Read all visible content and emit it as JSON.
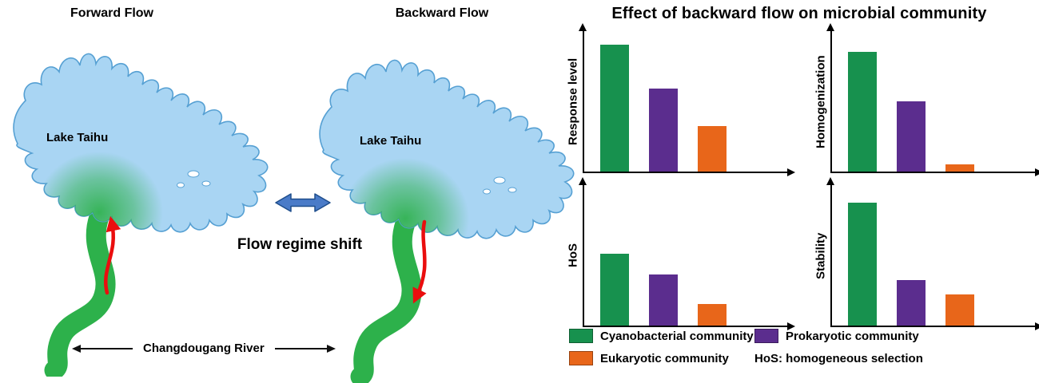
{
  "maps": {
    "forward": {
      "title": "Forward Flow",
      "lake_label": "Lake Taihu",
      "arrow_direction": "up"
    },
    "backward": {
      "title": "Backward Flow",
      "lake_label": "Lake Taihu",
      "arrow_direction": "down"
    },
    "shift_label": "Flow regime shift",
    "river_label": "Changdougang River"
  },
  "charts": {
    "title": "Effect of backward flow on microbial community"
  },
  "chart_data": [
    {
      "type": "bar",
      "ylabel": "Response level",
      "categories": [
        "Cyanobacterial community",
        "Prokaryotic community",
        "Eukaryotic community"
      ],
      "values": [
        0.9,
        0.59,
        0.32
      ],
      "ylim": [
        0,
        1
      ]
    },
    {
      "type": "bar",
      "ylabel": "Homogenization",
      "categories": [
        "Cyanobacterial community",
        "Prokaryotic community",
        "Eukaryotic community"
      ],
      "values": [
        0.85,
        0.5,
        0.05
      ],
      "ylim": [
        0,
        1
      ]
    },
    {
      "type": "bar",
      "ylabel": "HoS",
      "categories": [
        "Cyanobacterial community",
        "Prokaryotic community",
        "Eukaryotic community"
      ],
      "values": [
        0.51,
        0.36,
        0.15
      ],
      "ylim": [
        0,
        1
      ]
    },
    {
      "type": "bar",
      "ylabel": "Stability",
      "categories": [
        "Cyanobacterial community",
        "Prokaryotic community",
        "Eukaryotic community"
      ],
      "values": [
        0.87,
        0.32,
        0.22
      ],
      "ylim": [
        0,
        1
      ]
    }
  ],
  "legend": {
    "items": [
      {
        "label": "Cyanobacterial community",
        "color": "#17914e"
      },
      {
        "label": "Prokaryotic community",
        "color": "#5b2d8e"
      },
      {
        "label": "Eukaryotic community",
        "color": "#e8661a"
      }
    ],
    "note": "HoS: homogeneous selection"
  },
  "colors": {
    "lake_fill": "#a9d5f3",
    "lake_stroke": "#56a0d3",
    "river_green": "#2db14b",
    "flow_arrow_red": "#ea0e0e",
    "shift_arrow_fill": "#4a7bc8",
    "shift_arrow_stroke": "#1f4e8c"
  }
}
